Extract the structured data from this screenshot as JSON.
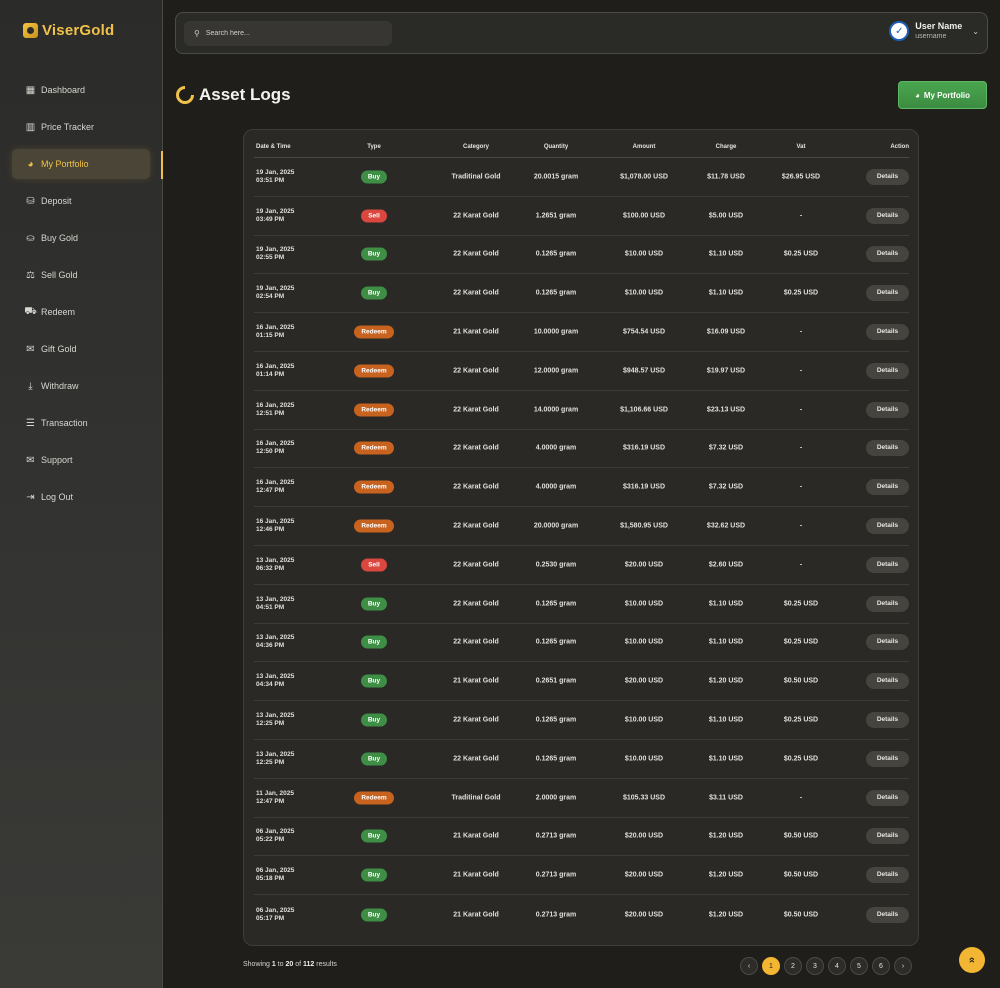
{
  "brand": {
    "name": "ViserGold"
  },
  "sidebar": {
    "items": [
      {
        "label": "Dashboard",
        "icon": "grid-icon",
        "glyph": "▦"
      },
      {
        "label": "Price Tracker",
        "icon": "bar-chart-icon",
        "glyph": "▥"
      },
      {
        "label": "My Portfolio",
        "icon": "pie-chart-icon",
        "glyph": "◕",
        "active": true
      },
      {
        "label": "Deposit",
        "icon": "money-bag-icon",
        "glyph": "⛁"
      },
      {
        "label": "Buy Gold",
        "icon": "coin-hand-icon",
        "glyph": "⛀"
      },
      {
        "label": "Sell Gold",
        "icon": "hand-money-icon",
        "glyph": "⚖"
      },
      {
        "label": "Redeem",
        "icon": "truck-icon",
        "glyph": "⛟"
      },
      {
        "label": "Gift Gold",
        "icon": "gift-icon",
        "glyph": "✉"
      },
      {
        "label": "Withdraw",
        "icon": "withdraw-icon",
        "glyph": "⤓"
      },
      {
        "label": "Transaction",
        "icon": "receipt-icon",
        "glyph": "☰"
      },
      {
        "label": "Support",
        "icon": "envelope-icon",
        "glyph": "✉"
      },
      {
        "label": "Log Out",
        "icon": "logout-icon",
        "glyph": "⇥"
      }
    ]
  },
  "search": {
    "placeholder": "Search here..."
  },
  "user": {
    "name": "User Name",
    "username": "username"
  },
  "page": {
    "title": "Asset Logs",
    "portfolio_button": "My Portfolio"
  },
  "table": {
    "headers": {
      "date": "Date & Time",
      "type": "Type",
      "category": "Category",
      "quantity": "Quantity",
      "amount": "Amount",
      "charge": "Charge",
      "vat": "Vat",
      "action": "Action"
    },
    "action_label": "Details",
    "rows": [
      {
        "date": "19 Jan, 2025",
        "time": "03:51 PM",
        "type": "Buy",
        "kind": "buy",
        "category": "Traditinal Gold",
        "quantity": "20.0015 gram",
        "amount": "$1,078.00 USD",
        "charge": "$11.78 USD",
        "vat": "$26.95 USD"
      },
      {
        "date": "19 Jan, 2025",
        "time": "03:49 PM",
        "type": "Sell",
        "kind": "sell",
        "category": "22 Karat Gold",
        "quantity": "1.2651 gram",
        "amount": "$100.00 USD",
        "charge": "$5.00 USD",
        "vat": "-"
      },
      {
        "date": "19 Jan, 2025",
        "time": "02:55 PM",
        "type": "Buy",
        "kind": "buy",
        "category": "22 Karat Gold",
        "quantity": "0.1265 gram",
        "amount": "$10.00 USD",
        "charge": "$1.10 USD",
        "vat": "$0.25 USD"
      },
      {
        "date": "19 Jan, 2025",
        "time": "02:54 PM",
        "type": "Buy",
        "kind": "buy",
        "category": "22 Karat Gold",
        "quantity": "0.1265 gram",
        "amount": "$10.00 USD",
        "charge": "$1.10 USD",
        "vat": "$0.25 USD"
      },
      {
        "date": "16 Jan, 2025",
        "time": "01:15 PM",
        "type": "Redeem",
        "kind": "redeem",
        "category": "21 Karat Gold",
        "quantity": "10.0000 gram",
        "amount": "$754.54 USD",
        "charge": "$16.09 USD",
        "vat": "-"
      },
      {
        "date": "16 Jan, 2025",
        "time": "01:14 PM",
        "type": "Redeem",
        "kind": "redeem",
        "category": "22 Karat Gold",
        "quantity": "12.0000 gram",
        "amount": "$948.57 USD",
        "charge": "$19.97 USD",
        "vat": "-"
      },
      {
        "date": "16 Jan, 2025",
        "time": "12:51 PM",
        "type": "Redeem",
        "kind": "redeem",
        "category": "22 Karat Gold",
        "quantity": "14.0000 gram",
        "amount": "$1,106.66 USD",
        "charge": "$23.13 USD",
        "vat": "-"
      },
      {
        "date": "16 Jan, 2025",
        "time": "12:50 PM",
        "type": "Redeem",
        "kind": "redeem",
        "category": "22 Karat Gold",
        "quantity": "4.0000 gram",
        "amount": "$316.19 USD",
        "charge": "$7.32 USD",
        "vat": "-"
      },
      {
        "date": "16 Jan, 2025",
        "time": "12:47 PM",
        "type": "Redeem",
        "kind": "redeem",
        "category": "22 Karat Gold",
        "quantity": "4.0000 gram",
        "amount": "$316.19 USD",
        "charge": "$7.32 USD",
        "vat": "-"
      },
      {
        "date": "16 Jan, 2025",
        "time": "12:46 PM",
        "type": "Redeem",
        "kind": "redeem",
        "category": "22 Karat Gold",
        "quantity": "20.0000 gram",
        "amount": "$1,580.95 USD",
        "charge": "$32.62 USD",
        "vat": "-"
      },
      {
        "date": "13 Jan, 2025",
        "time": "06:32 PM",
        "type": "Sell",
        "kind": "sell",
        "category": "22 Karat Gold",
        "quantity": "0.2530 gram",
        "amount": "$20.00 USD",
        "charge": "$2.60 USD",
        "vat": "-"
      },
      {
        "date": "13 Jan, 2025",
        "time": "04:51 PM",
        "type": "Buy",
        "kind": "buy",
        "category": "22 Karat Gold",
        "quantity": "0.1265 gram",
        "amount": "$10.00 USD",
        "charge": "$1.10 USD",
        "vat": "$0.25 USD"
      },
      {
        "date": "13 Jan, 2025",
        "time": "04:36 PM",
        "type": "Buy",
        "kind": "buy",
        "category": "22 Karat Gold",
        "quantity": "0.1265 gram",
        "amount": "$10.00 USD",
        "charge": "$1.10 USD",
        "vat": "$0.25 USD"
      },
      {
        "date": "13 Jan, 2025",
        "time": "04:34 PM",
        "type": "Buy",
        "kind": "buy",
        "category": "21 Karat Gold",
        "quantity": "0.2651 gram",
        "amount": "$20.00 USD",
        "charge": "$1.20 USD",
        "vat": "$0.50 USD"
      },
      {
        "date": "13 Jan, 2025",
        "time": "12:25 PM",
        "type": "Buy",
        "kind": "buy",
        "category": "22 Karat Gold",
        "quantity": "0.1265 gram",
        "amount": "$10.00 USD",
        "charge": "$1.10 USD",
        "vat": "$0.25 USD"
      },
      {
        "date": "13 Jan, 2025",
        "time": "12:25 PM",
        "type": "Buy",
        "kind": "buy",
        "category": "22 Karat Gold",
        "quantity": "0.1265 gram",
        "amount": "$10.00 USD",
        "charge": "$1.10 USD",
        "vat": "$0.25 USD"
      },
      {
        "date": "11 Jan, 2025",
        "time": "12:47 PM",
        "type": "Redeem",
        "kind": "redeem",
        "category": "Traditinal Gold",
        "quantity": "2.0000 gram",
        "amount": "$105.33 USD",
        "charge": "$3.11 USD",
        "vat": "-"
      },
      {
        "date": "06 Jan, 2025",
        "time": "05:22 PM",
        "type": "Buy",
        "kind": "buy",
        "category": "21 Karat Gold",
        "quantity": "0.2713 gram",
        "amount": "$20.00 USD",
        "charge": "$1.20 USD",
        "vat": "$0.50 USD"
      },
      {
        "date": "06 Jan, 2025",
        "time": "05:18 PM",
        "type": "Buy",
        "kind": "buy",
        "category": "21 Karat Gold",
        "quantity": "0.2713 gram",
        "amount": "$20.00 USD",
        "charge": "$1.20 USD",
        "vat": "$0.50 USD"
      },
      {
        "date": "06 Jan, 2025",
        "time": "05:17 PM",
        "type": "Buy",
        "kind": "buy",
        "category": "21 Karat Gold",
        "quantity": "0.2713 gram",
        "amount": "$20.00 USD",
        "charge": "$1.20 USD",
        "vat": "$0.50 USD"
      }
    ]
  },
  "footer": {
    "showing_prefix": "Showing",
    "from": "1",
    "to_word": "to",
    "to": "20",
    "of_word": "of",
    "total": "112",
    "suffix": "results"
  },
  "pagination": {
    "prev": "‹",
    "next": "›",
    "pages": [
      "1",
      "2",
      "3",
      "4",
      "5",
      "6"
    ],
    "current": "1"
  },
  "scroll_top": {
    "glyph": "»"
  },
  "colors": {
    "accent": "#f2b632",
    "buy": "#3e8f45",
    "sell": "#d9473f",
    "redeem": "#c7631f",
    "primary_button": "#4aa54f"
  }
}
